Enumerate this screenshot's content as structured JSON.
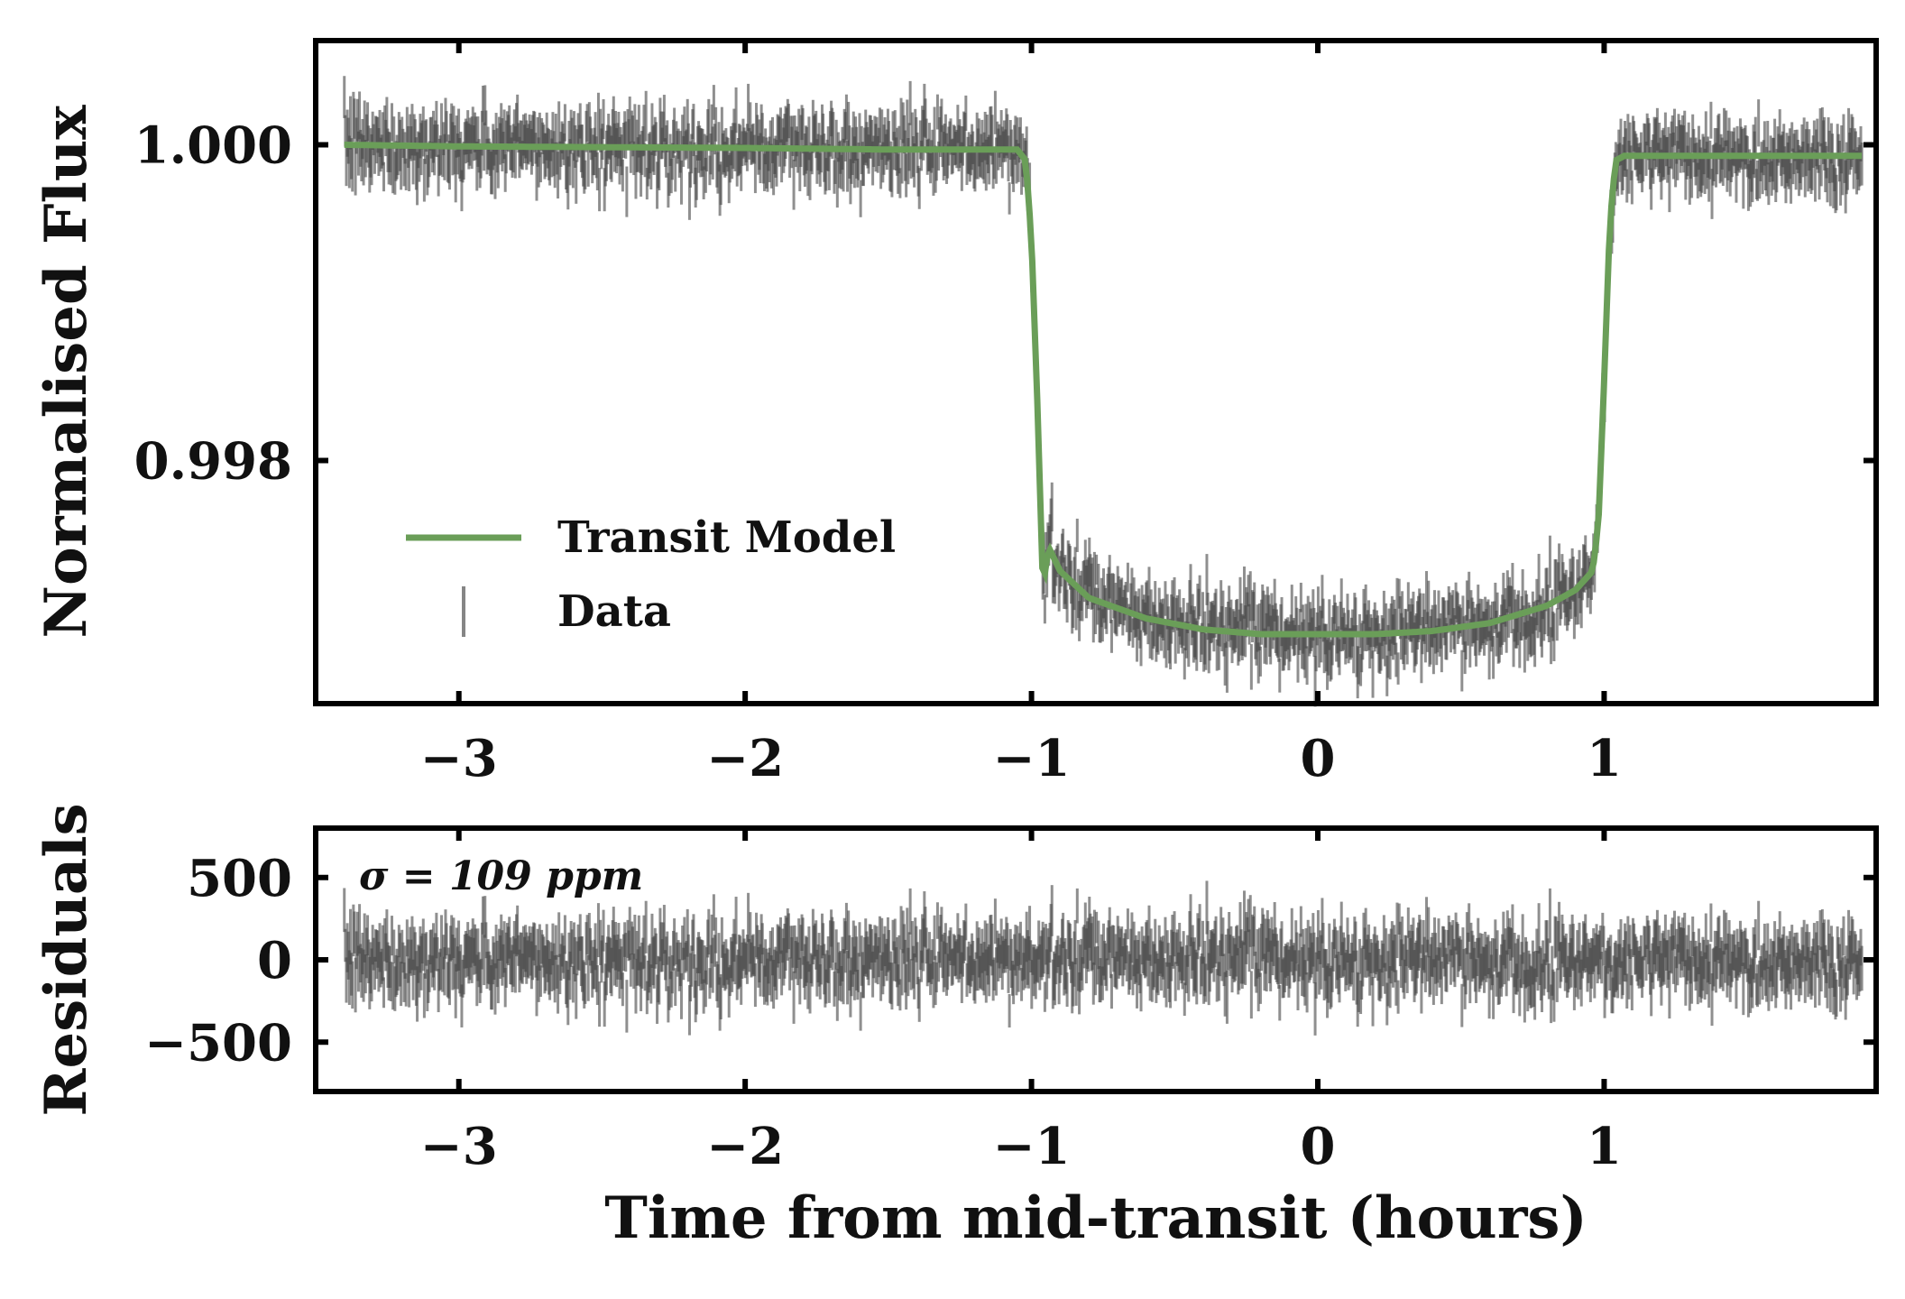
{
  "colors": {
    "model": "#6a9e58",
    "data": "#444444",
    "axes": "#000000"
  },
  "chart_data": [
    {
      "type": "line",
      "panel": "top",
      "xlabel": "",
      "ylabel": "Normalised Flux",
      "xlim": [
        -3.5,
        1.95
      ],
      "ylim": [
        0.99646,
        1.00066
      ],
      "xticks": [
        -3,
        -2,
        -1,
        0,
        1
      ],
      "xtick_labels": [
        "−3",
        "−2",
        "−1",
        "0",
        "1"
      ],
      "yticks": [
        0.998,
        1.0
      ],
      "ytick_labels": [
        "0.998",
        "1.000"
      ],
      "legend": {
        "position": "lower-left",
        "entries": [
          "Transit Model",
          "Data"
        ]
      },
      "series": [
        {
          "name": "Transit Model",
          "style": "line",
          "x": [
            -3.4,
            -3.0,
            -2.0,
            -1.5,
            -1.05,
            -1.02,
            -1.0,
            -0.98,
            -0.96,
            -0.94,
            -0.9,
            -0.8,
            -0.6,
            -0.4,
            -0.2,
            0.0,
            0.2,
            0.4,
            0.6,
            0.8,
            0.9,
            0.96,
            0.98,
            1.0,
            1.02,
            1.04,
            1.07,
            1.5,
            1.9
          ],
          "y": [
            1.0,
            0.99999,
            0.99998,
            0.99997,
            0.99997,
            0.9999,
            0.9994,
            0.9984,
            0.9972,
            0.99745,
            0.9973,
            0.99713,
            0.997,
            0.99693,
            0.9969,
            0.9969,
            0.9969,
            0.99692,
            0.99697,
            0.99708,
            0.99718,
            0.9973,
            0.9976,
            0.9985,
            0.9995,
            0.9999,
            0.99993,
            0.99993,
            0.99993
          ]
        },
        {
          "name": "Data",
          "style": "errorbar",
          "n_points": 1500,
          "scatter_ppm": 109,
          "errorbar_ppm": 130,
          "follows": "Transit Model"
        }
      ]
    },
    {
      "type": "scatter",
      "panel": "bottom",
      "xlabel": "Time from mid-transit (hours)",
      "ylabel": "Residuals",
      "xlim": [
        -3.5,
        1.95
      ],
      "ylim": [
        -800,
        800
      ],
      "xticks": [
        -3,
        -2,
        -1,
        0,
        1
      ],
      "xtick_labels": [
        "−3",
        "−2",
        "−1",
        "0",
        "1"
      ],
      "yticks": [
        -500,
        0,
        500
      ],
      "ytick_labels": [
        "−500",
        "0",
        "500"
      ],
      "annotation": "σ = 109 ppm",
      "series": [
        {
          "style": "errorbar",
          "n_points": 1500,
          "scatter_ppm": 109,
          "errorbar_ppm": 130,
          "center": 0
        }
      ]
    }
  ]
}
